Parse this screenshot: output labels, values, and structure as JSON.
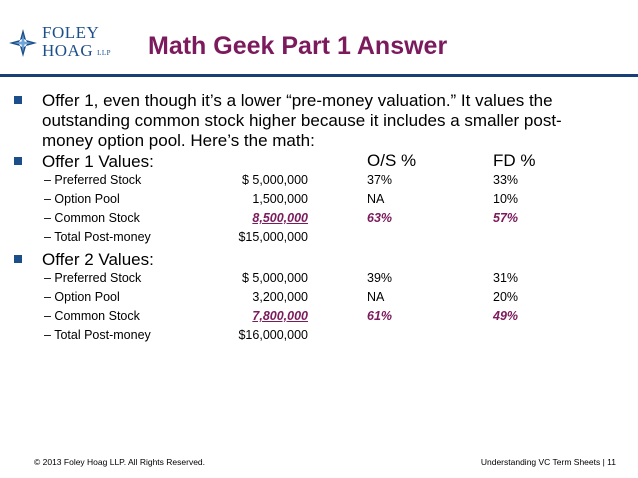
{
  "logo": {
    "line1": "FOLEY",
    "line2": "HOAG",
    "llp": "LLP"
  },
  "title": "Math Geek Part 1 Answer",
  "bullet1": {
    "lines": [
      "Offer 1, even though it’s a lower “pre-money valuation.”  It values the",
      "outstanding common stock higher because it includes a smaller post-",
      "money option pool.  Here’s the math:"
    ]
  },
  "offer1": {
    "heading": "Offer 1 Values:",
    "os_header": "O/S %",
    "fd_header": "FD %",
    "rows": [
      {
        "label": "– Preferred Stock",
        "amount": "$ 5,000,000",
        "os": "37%",
        "fd": "33%"
      },
      {
        "label": "– Option Pool",
        "amount": "1,500,000",
        "os": "NA",
        "fd": "10%"
      },
      {
        "label": "– Common Stock",
        "amount": "8,500,000",
        "os": "63%",
        "fd": "57%"
      },
      {
        "label": "– Total Post-money",
        "amount": "$15,000,000",
        "os": "",
        "fd": ""
      }
    ]
  },
  "offer2": {
    "heading": "Offer 2 Values:",
    "rows": [
      {
        "label": "– Preferred Stock",
        "amount": "$ 5,000,000",
        "os": "39%",
        "fd": "31%"
      },
      {
        "label": "– Option Pool",
        "amount": "3,200,000",
        "os": "NA",
        "fd": "20%"
      },
      {
        "label": "– Common Stock",
        "amount": "7,800,000",
        "os": "61%",
        "fd": "49%"
      },
      {
        "label": "– Total Post-money",
        "amount": "$16,000,000",
        "os": "",
        "fd": ""
      }
    ]
  },
  "footer": {
    "left": "© 2013 Foley Hoag LLP. All Rights Reserved.",
    "right": "Understanding VC Term Sheets |   11"
  },
  "colors": {
    "title": "#7b1a5c",
    "accent": "#1c4f8a",
    "rule": "#1a3f78"
  },
  "icons": {
    "logo_mark": "compass-star-icon",
    "bullet": "square-bullet-icon"
  }
}
